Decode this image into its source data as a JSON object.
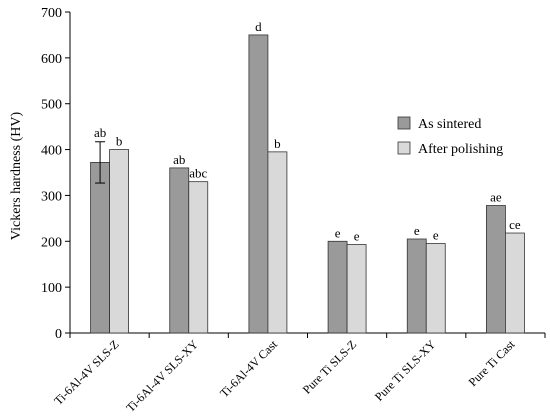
{
  "chart_data": {
    "type": "bar",
    "title": "",
    "xlabel": "",
    "ylabel": "Vickers hardness (HV)",
    "ylim": [
      0,
      700
    ],
    "yticks": [
      0,
      100,
      200,
      300,
      400,
      500,
      600,
      700
    ],
    "grid": false,
    "legend_position": "right",
    "categories": [
      "Ti-6Al-4V SLS-Z",
      "Ti-6Al-4V SLS-XY",
      "Ti-6Al-4V Cast",
      "Pure Ti SLS-Z",
      "Pure Ti SLS-XY",
      "Pure Ti Cast"
    ],
    "series": [
      {
        "name": "As sintered",
        "color": "#9a9a9a",
        "values": [
          372,
          360,
          650,
          200,
          205,
          278
        ],
        "labels": [
          "ab",
          "ab",
          "d",
          "e",
          "e",
          "ae"
        ],
        "errors": [
          45,
          0,
          0,
          0,
          0,
          0
        ]
      },
      {
        "name": "After polishing",
        "color": "#d9d9d9",
        "values": [
          400,
          330,
          395,
          193,
          195,
          218
        ],
        "labels": [
          "b",
          "abc",
          "b",
          "e",
          "e",
          "ce"
        ],
        "errors": [
          0,
          0,
          0,
          0,
          0,
          0
        ]
      }
    ]
  }
}
